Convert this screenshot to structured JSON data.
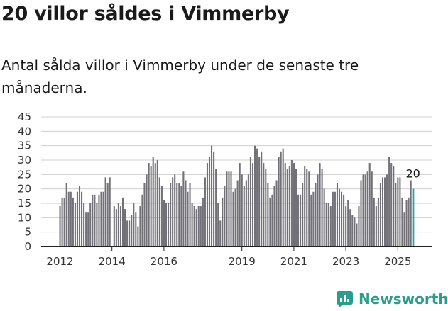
{
  "title": "20 villor såldes i Vimmerby",
  "subtitle": "Antal sålda villor i Vimmerby under de senaste tre månaderna.",
  "brand": {
    "name": "Newsworthy",
    "icon": "newsworthy-logo-icon",
    "color": "#2a9d8f"
  },
  "colors": {
    "bar": "#727178",
    "highlight": "#2ba39a",
    "grid": "#cfcfcf",
    "axis": "#222222"
  },
  "chart_data": {
    "type": "bar",
    "ylim": [
      0,
      45
    ],
    "yticks": [
      0,
      5,
      10,
      15,
      20,
      25,
      30,
      35,
      40,
      45
    ],
    "grid": true,
    "xticks": [
      "2012",
      "2014",
      "2016",
      "2019",
      "2021",
      "2023",
      "2025"
    ],
    "last_label": "20",
    "values": [
      14,
      17,
      17,
      22,
      19,
      19,
      17,
      15,
      19,
      21,
      19,
      15,
      12,
      12,
      15,
      18,
      18,
      15,
      18,
      19,
      19,
      24,
      22,
      24,
      0,
      14,
      13,
      15,
      14,
      17,
      13,
      9,
      9,
      11,
      15,
      12,
      7,
      14,
      18,
      22,
      25,
      29,
      28,
      31,
      29,
      30,
      24,
      21,
      16,
      15,
      15,
      22,
      24,
      25,
      22,
      22,
      21,
      26,
      23,
      19,
      22,
      15,
      14,
      13,
      14,
      14,
      17,
      24,
      29,
      31,
      35,
      33,
      27,
      15,
      9,
      17,
      21,
      26,
      26,
      26,
      19,
      20,
      23,
      29,
      25,
      21,
      23,
      25,
      31,
      29,
      35,
      34,
      31,
      33,
      29,
      27,
      22,
      17,
      18,
      21,
      23,
      31,
      33,
      34,
      29,
      27,
      28,
      30,
      29,
      27,
      18,
      18,
      22,
      28,
      27,
      26,
      18,
      19,
      22,
      25,
      29,
      27,
      20,
      15,
      15,
      14,
      19,
      19,
      22,
      20,
      19,
      18,
      14,
      16,
      13,
      11,
      10,
      8,
      14,
      23,
      25,
      25,
      26,
      29,
      26,
      17,
      14,
      17,
      22,
      24,
      24,
      25,
      31,
      29,
      28,
      22,
      24,
      24,
      17,
      12,
      16,
      17,
      23,
      20
    ]
  }
}
